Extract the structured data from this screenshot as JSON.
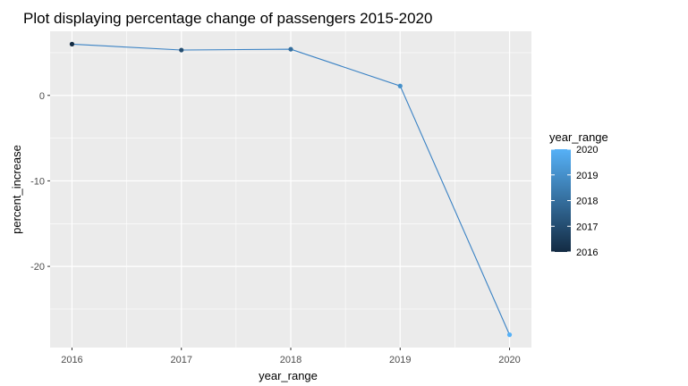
{
  "chart_data": {
    "type": "line",
    "title": "Plot displaying percentage change of passengers 2015-2020",
    "xlabel": "year_range",
    "ylabel": "percent_increase",
    "x": [
      2016,
      2017,
      2018,
      2019,
      2020
    ],
    "series": [
      {
        "values": [
          6.0,
          5.3,
          5.4,
          1.1,
          -28.0
        ]
      }
    ],
    "xlim": [
      2015.8,
      2020.2
    ],
    "ylim": [
      -29.5,
      7.5
    ],
    "x_ticks": [
      2016,
      2017,
      2018,
      2019,
      2020
    ],
    "y_ticks": [
      0,
      -10,
      -20
    ],
    "grid": true,
    "legend": {
      "title": "year_range",
      "placement": "right",
      "type": "colorbar",
      "ticks": [
        2020,
        2019,
        2018,
        2017,
        2016
      ],
      "range": [
        2016,
        2020
      ],
      "color_low": "#132b43",
      "color_high": "#56b1f7"
    },
    "colors": {
      "panel": "#ebebeb",
      "grid": "#ffffff",
      "line": "#3a82c4"
    }
  }
}
